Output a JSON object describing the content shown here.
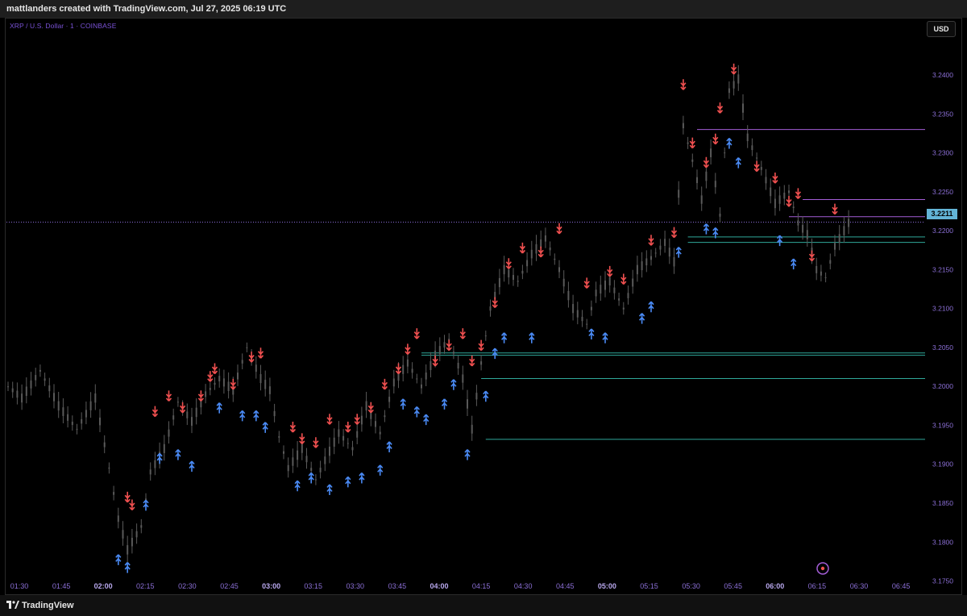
{
  "header": {
    "title": "mattlanders created with TradingView.com, Jul 27, 2025 06:19 UTC"
  },
  "symbol": "XRP / U.S. Dollar · 1 · COINBASE",
  "currency_button": "USD",
  "footer": {
    "brand": "TradingView",
    "logo_icon": "tradingview-logo-icon"
  },
  "current_price": "3.2211",
  "colors": {
    "background": "#000000",
    "candle": "#5a5a5a",
    "buy_arrow": "#4a8af4",
    "sell_arrow": "#f05050",
    "zone_line": "#2fa89a",
    "resistance_line": "#a35dd6",
    "price_line": "#8a6dd8",
    "axis_text": "#8b6fd6"
  },
  "chart_data": {
    "type": "candlestick",
    "y_axis": {
      "ticks": [
        "3.2400",
        "3.2350",
        "3.2300",
        "3.2250",
        "3.2200",
        "3.2150",
        "3.2100",
        "3.2050",
        "3.2000",
        "3.1950",
        "3.1900",
        "3.1850",
        "3.1800",
        "3.1750"
      ],
      "range": [
        3.1735,
        3.2455
      ]
    },
    "x_axis": {
      "ticks": [
        "01:30",
        "01:45",
        "02:00",
        "02:15",
        "02:30",
        "02:45",
        "03:00",
        "03:15",
        "03:30",
        "03:45",
        "04:00",
        "04:15",
        "04:30",
        "04:45",
        "05:00",
        "05:15",
        "05:30",
        "05:45",
        "06:00",
        "06:15",
        "06:30",
        "06:45"
      ],
      "bold_ticks": [
        "02:00",
        "03:00",
        "04:00",
        "05:00",
        "06:00"
      ]
    },
    "price_path": [
      [
        0,
        3.2
      ],
      [
        3,
        3.1985
      ],
      [
        7,
        3.202
      ],
      [
        11,
        3.1975
      ],
      [
        15,
        3.1945
      ],
      [
        19,
        3.1985
      ],
      [
        22,
        3.1895
      ],
      [
        24,
        3.183
      ],
      [
        26,
        3.179
      ],
      [
        29,
        3.182
      ],
      [
        31,
        3.189
      ],
      [
        34,
        3.192
      ],
      [
        37,
        3.198
      ],
      [
        40,
        3.1955
      ],
      [
        43,
        3.199
      ],
      [
        46,
        3.201
      ],
      [
        49,
        3.1995
      ],
      [
        52,
        3.205
      ],
      [
        55,
        3.201
      ],
      [
        57,
        3.1995
      ],
      [
        59,
        3.1935
      ],
      [
        61,
        3.1895
      ],
      [
        64,
        3.192
      ],
      [
        67,
        3.188
      ],
      [
        69,
        3.1905
      ],
      [
        72,
        3.194
      ],
      [
        75,
        3.192
      ],
      [
        78,
        3.1975
      ],
      [
        81,
        3.194
      ],
      [
        84,
        3.2005
      ],
      [
        87,
        3.203
      ],
      [
        90,
        3.2
      ],
      [
        93,
        3.204
      ],
      [
        96,
        3.206
      ],
      [
        99,
        3.201
      ],
      [
        101,
        3.1945
      ],
      [
        103,
        3.203
      ],
      [
        105,
        3.21
      ],
      [
        108,
        3.215
      ],
      [
        111,
        3.2135
      ],
      [
        114,
        3.217
      ],
      [
        117,
        3.219
      ],
      [
        120,
        3.215
      ],
      [
        123,
        3.21
      ],
      [
        126,
        3.208
      ],
      [
        128,
        3.212
      ],
      [
        131,
        3.2135
      ],
      [
        134,
        3.21
      ],
      [
        137,
        3.215
      ],
      [
        140,
        3.2165
      ],
      [
        143,
        3.2185
      ],
      [
        145,
        3.216
      ],
      [
        147,
        3.2335
      ],
      [
        149,
        3.229
      ],
      [
        151,
        3.224
      ],
      [
        153,
        3.23
      ],
      [
        155,
        3.222
      ],
      [
        157,
        3.238
      ],
      [
        159,
        3.2395
      ],
      [
        161,
        3.232
      ],
      [
        164,
        3.228
      ],
      [
        167,
        3.2235
      ],
      [
        170,
        3.225
      ],
      [
        172,
        3.221
      ],
      [
        174,
        3.2195
      ],
      [
        176,
        3.215
      ],
      [
        178,
        3.214
      ],
      [
        180,
        3.218
      ],
      [
        183,
        3.221
      ]
    ],
    "sell_signals": [
      [
        26,
        3.1845
      ],
      [
        27,
        3.1835
      ],
      [
        32,
        3.1955
      ],
      [
        35,
        3.1975
      ],
      [
        38,
        3.196
      ],
      [
        42,
        3.1975
      ],
      [
        44,
        3.2
      ],
      [
        45,
        3.201
      ],
      [
        49,
        3.199
      ],
      [
        53,
        3.2025
      ],
      [
        55,
        3.203
      ],
      [
        62,
        3.1935
      ],
      [
        64,
        3.192
      ],
      [
        67,
        3.1915
      ],
      [
        70,
        3.1945
      ],
      [
        74,
        3.1935
      ],
      [
        76,
        3.1945
      ],
      [
        79,
        3.196
      ],
      [
        82,
        3.199
      ],
      [
        85,
        3.201
      ],
      [
        87,
        3.2035
      ],
      [
        89,
        3.2055
      ],
      [
        93,
        3.202
      ],
      [
        96,
        3.204
      ],
      [
        99,
        3.2055
      ],
      [
        101,
        3.202
      ],
      [
        103,
        3.204
      ],
      [
        106,
        3.2095
      ],
      [
        109,
        3.2145
      ],
      [
        112,
        3.2165
      ],
      [
        116,
        3.216
      ],
      [
        120,
        3.219
      ],
      [
        126,
        3.212
      ],
      [
        131,
        3.2135
      ],
      [
        134,
        3.2125
      ],
      [
        140,
        3.2175
      ],
      [
        145,
        3.2185
      ],
      [
        147,
        3.2375
      ],
      [
        149,
        3.23
      ],
      [
        152,
        3.2275
      ],
      [
        154,
        3.2305
      ],
      [
        155,
        3.2345
      ],
      [
        158,
        3.2395
      ],
      [
        163,
        3.227
      ],
      [
        167,
        3.2255
      ],
      [
        170,
        3.2225
      ],
      [
        172,
        3.2235
      ],
      [
        175,
        3.2155
      ],
      [
        180,
        3.2215
      ]
    ],
    "buy_signals": [
      [
        24,
        3.179
      ],
      [
        26,
        3.178
      ],
      [
        30,
        3.186
      ],
      [
        33,
        3.192
      ],
      [
        37,
        3.1925
      ],
      [
        40,
        3.191
      ],
      [
        46,
        3.1985
      ],
      [
        51,
        3.1975
      ],
      [
        54,
        3.1975
      ],
      [
        56,
        3.196
      ],
      [
        63,
        3.1885
      ],
      [
        66,
        3.1895
      ],
      [
        70,
        3.188
      ],
      [
        74,
        3.189
      ],
      [
        77,
        3.1895
      ],
      [
        81,
        3.1905
      ],
      [
        83,
        3.1935
      ],
      [
        86,
        3.199
      ],
      [
        89,
        3.198
      ],
      [
        91,
        3.197
      ],
      [
        95,
        3.199
      ],
      [
        97,
        3.2015
      ],
      [
        100,
        3.1925
      ],
      [
        104,
        3.2
      ],
      [
        106,
        3.2055
      ],
      [
        108,
        3.2075
      ],
      [
        114,
        3.2075
      ],
      [
        127,
        3.208
      ],
      [
        130,
        3.2075
      ],
      [
        138,
        3.21
      ],
      [
        140,
        3.2115
      ],
      [
        146,
        3.2185
      ],
      [
        152,
        3.2215
      ],
      [
        154,
        3.221
      ],
      [
        157,
        3.2325
      ],
      [
        159,
        3.23
      ],
      [
        168,
        3.22
      ],
      [
        171,
        3.217
      ]
    ],
    "horizontal_levels": [
      {
        "price": 3.233,
        "from": 150,
        "color": "purple"
      },
      {
        "price": 3.224,
        "from": 173,
        "color": "purple"
      },
      {
        "price": 3.2218,
        "from": 170,
        "color": "purple"
      },
      {
        "price": 3.2192,
        "from": 148,
        "color": "teal"
      },
      {
        "price": 3.2185,
        "from": 148,
        "color": "teal"
      },
      {
        "price": 3.2043,
        "from": 90,
        "color": "teal"
      },
      {
        "price": 3.204,
        "from": 90,
        "color": "teal"
      },
      {
        "price": 3.201,
        "from": 103,
        "color": "teal"
      },
      {
        "price": 3.1932,
        "from": 104,
        "color": "teal"
      }
    ]
  }
}
